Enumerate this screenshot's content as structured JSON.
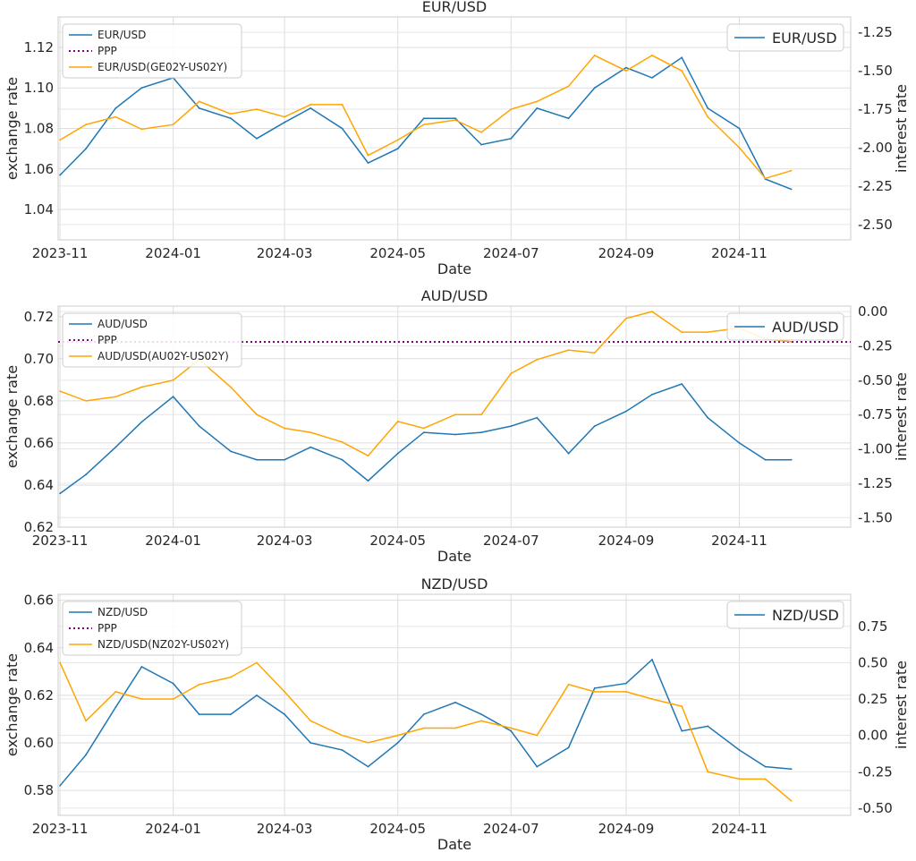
{
  "charts": [
    {
      "title": "EUR/USD",
      "xlabel": "Date",
      "ylabel_left": "exchange rate",
      "ylabel_right": "interest rate",
      "ylim_left": [
        1.025,
        1.135
      ],
      "ylim_right": [
        -2.6,
        -1.15
      ],
      "yticks_left": [
        "1.04",
        "1.06",
        "1.08",
        "1.10",
        "1.12"
      ],
      "yticks_right": [
        "-2.50",
        "-2.25",
        "-2.00",
        "-1.75",
        "-1.50",
        "-1.25"
      ],
      "legend_entries": [
        "EUR/USD",
        "PPP",
        "EUR/USD(GE02Y-US02Y)"
      ],
      "legend_right_entry": "EUR/USD",
      "ppp_value": null
    },
    {
      "title": "AUD/USD",
      "xlabel": "Date",
      "ylabel_left": "exchange rate",
      "ylabel_right": "interest rate",
      "ylim_left": [
        0.62,
        0.725
      ],
      "ylim_right": [
        -1.57,
        0.04
      ],
      "yticks_left": [
        "0.62",
        "0.64",
        "0.66",
        "0.68",
        "0.70",
        "0.72"
      ],
      "yticks_right": [
        "-1.50",
        "-1.25",
        "-1.00",
        "-0.75",
        "-0.50",
        "-0.25",
        "0.00"
      ],
      "legend_entries": [
        "AUD/USD",
        "PPP",
        "AUD/USD(AU02Y-US02Y)"
      ],
      "legend_right_entry": "AUD/USD",
      "ppp_value": 0.708
    },
    {
      "title": "NZD/USD",
      "xlabel": "Date",
      "ylabel_left": "exchange rate",
      "ylabel_right": "interest rate",
      "ylim_left": [
        0.5695,
        0.6625
      ],
      "ylim_right": [
        -0.55,
        0.97
      ],
      "yticks_left": [
        "0.58",
        "0.60",
        "0.62",
        "0.64",
        "0.66"
      ],
      "yticks_right": [
        "-0.50",
        "-0.25",
        "0.00",
        "0.25",
        "0.50",
        "0.75"
      ],
      "legend_entries": [
        "NZD/USD",
        "PPP",
        "NZD/USD(NZ02Y-US02Y)"
      ],
      "legend_right_entry": "NZD/USD",
      "ppp_value": null
    }
  ],
  "xticks": [
    "2023-11",
    "2024-01",
    "2024-03",
    "2024-05",
    "2024-07",
    "2024-09",
    "2024-11"
  ],
  "xlim": [
    "2023-10-31",
    "2024-12-31"
  ],
  "colors": {
    "fx": "#1f77b4",
    "rate": "#ffa500",
    "ppp": "#800080"
  },
  "chart_data": [
    {
      "type": "line",
      "title": "EUR/USD",
      "x": [
        "2023-11-01",
        "2023-11-15",
        "2023-12-01",
        "2023-12-15",
        "2024-01-01",
        "2024-01-15",
        "2024-02-01",
        "2024-02-15",
        "2024-03-01",
        "2024-03-15",
        "2024-04-01",
        "2024-04-15",
        "2024-05-01",
        "2024-05-15",
        "2024-06-01",
        "2024-06-15",
        "2024-07-01",
        "2024-07-15",
        "2024-08-01",
        "2024-08-15",
        "2024-09-01",
        "2024-09-15",
        "2024-10-01",
        "2024-10-15",
        "2024-11-01",
        "2024-11-15",
        "2024-11-29"
      ],
      "series": [
        {
          "name": "EUR/USD",
          "axis": "left",
          "values": [
            1.057,
            1.07,
            1.09,
            1.1,
            1.105,
            1.09,
            1.085,
            1.075,
            1.083,
            1.09,
            1.08,
            1.063,
            1.07,
            1.085,
            1.085,
            1.072,
            1.075,
            1.09,
            1.085,
            1.1,
            1.11,
            1.105,
            1.115,
            1.09,
            1.08,
            1.055,
            1.05
          ]
        },
        {
          "name": "EUR/USD(GE02Y-US02Y)",
          "axis": "right",
          "values": [
            -1.95,
            -1.85,
            -1.8,
            -1.88,
            -1.85,
            -1.7,
            -1.78,
            -1.75,
            -1.8,
            -1.72,
            -1.72,
            -2.05,
            -1.95,
            -1.85,
            -1.82,
            -1.9,
            -1.75,
            -1.7,
            -1.6,
            -1.4,
            -1.5,
            -1.4,
            -1.5,
            -1.8,
            -2.0,
            -2.2,
            -2.15
          ]
        }
      ]
    },
    {
      "type": "line",
      "title": "AUD/USD",
      "x": [
        "2023-11-01",
        "2023-11-15",
        "2023-12-01",
        "2023-12-15",
        "2024-01-01",
        "2024-01-15",
        "2024-02-01",
        "2024-02-15",
        "2024-03-01",
        "2024-03-15",
        "2024-04-01",
        "2024-04-15",
        "2024-05-01",
        "2024-05-15",
        "2024-06-01",
        "2024-06-15",
        "2024-07-01",
        "2024-07-15",
        "2024-08-01",
        "2024-08-15",
        "2024-09-01",
        "2024-09-15",
        "2024-10-01",
        "2024-10-15",
        "2024-11-01",
        "2024-11-15",
        "2024-11-29"
      ],
      "series": [
        {
          "name": "AUD/USD",
          "axis": "left",
          "values": [
            0.636,
            0.645,
            0.658,
            0.67,
            0.682,
            0.668,
            0.656,
            0.652,
            0.652,
            0.658,
            0.652,
            0.642,
            0.655,
            0.665,
            0.664,
            0.665,
            0.668,
            0.672,
            0.655,
            0.668,
            0.675,
            0.683,
            0.688,
            0.672,
            0.66,
            0.652,
            0.652
          ]
        },
        {
          "name": "AUD/USD(AU02Y-US02Y)",
          "axis": "right",
          "values": [
            -0.58,
            -0.65,
            -0.62,
            -0.55,
            -0.5,
            -0.35,
            -0.55,
            -0.75,
            -0.85,
            -0.88,
            -0.95,
            -1.05,
            -0.8,
            -0.85,
            -0.75,
            -0.75,
            -0.45,
            -0.35,
            -0.28,
            -0.3,
            -0.05,
            0.0,
            -0.15,
            -0.15,
            -0.12,
            -0.2,
            -0.22
          ]
        }
      ]
    },
    {
      "type": "line",
      "title": "NZD/USD",
      "x": [
        "2023-11-01",
        "2023-11-15",
        "2023-12-01",
        "2023-12-15",
        "2024-01-01",
        "2024-01-15",
        "2024-02-01",
        "2024-02-15",
        "2024-03-01",
        "2024-03-15",
        "2024-04-01",
        "2024-04-15",
        "2024-05-01",
        "2024-05-15",
        "2024-06-01",
        "2024-06-15",
        "2024-07-01",
        "2024-07-15",
        "2024-08-01",
        "2024-08-15",
        "2024-09-01",
        "2024-09-15",
        "2024-10-01",
        "2024-10-15",
        "2024-11-01",
        "2024-11-15",
        "2024-11-29"
      ],
      "series": [
        {
          "name": "NZD/USD",
          "axis": "left",
          "values": [
            0.582,
            0.595,
            0.615,
            0.632,
            0.625,
            0.612,
            0.612,
            0.62,
            0.612,
            0.6,
            0.597,
            0.59,
            0.6,
            0.612,
            0.617,
            0.612,
            0.605,
            0.59,
            0.598,
            0.623,
            0.625,
            0.635,
            0.605,
            0.607,
            0.597,
            0.59,
            0.589
          ]
        },
        {
          "name": "NZD/USD(NZ02Y-US02Y)",
          "axis": "right",
          "values": [
            0.5,
            0.1,
            0.3,
            0.25,
            0.25,
            0.35,
            0.4,
            0.5,
            0.3,
            0.1,
            0.0,
            -0.05,
            0.0,
            0.05,
            0.05,
            0.1,
            0.05,
            0.0,
            0.35,
            0.3,
            0.3,
            0.25,
            0.2,
            -0.25,
            -0.3,
            -0.3,
            -0.45
          ]
        }
      ]
    }
  ]
}
